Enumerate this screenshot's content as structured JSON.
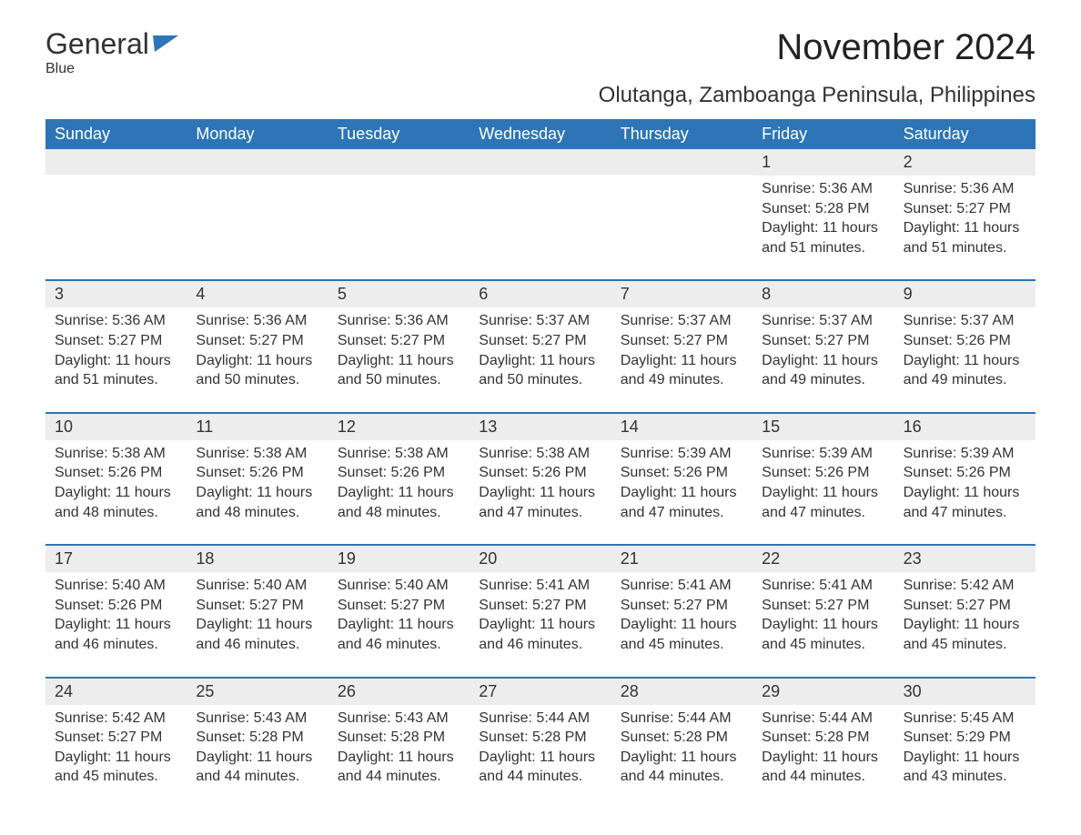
{
  "branding": {
    "word1": "General",
    "word2": "Blue",
    "flag_color": "#2d75b6"
  },
  "header": {
    "month_title": "November 2024",
    "location": "Olutanga, Zamboanga Peninsula, Philippines"
  },
  "style": {
    "header_bg": "#2d75b6",
    "header_text_color": "#ffffff",
    "daynum_bg": "#ededed",
    "week_border_color": "#2d75b6",
    "body_text_color": "#333333",
    "brand_blue": "#2d75b6",
    "month_title_fontsize": 40,
    "location_fontsize": 24,
    "weekday_fontsize": 18,
    "daynum_fontsize": 18,
    "body_fontsize": 16
  },
  "calendar": {
    "weekdays": [
      "Sunday",
      "Monday",
      "Tuesday",
      "Wednesday",
      "Thursday",
      "Friday",
      "Saturday"
    ],
    "weeks": [
      [
        {
          "empty": true
        },
        {
          "empty": true
        },
        {
          "empty": true
        },
        {
          "empty": true
        },
        {
          "empty": true
        },
        {
          "day": "1",
          "sunrise": "Sunrise: 5:36 AM",
          "sunset": "Sunset: 5:28 PM",
          "daylight1": "Daylight: 11 hours",
          "daylight2": "and 51 minutes."
        },
        {
          "day": "2",
          "sunrise": "Sunrise: 5:36 AM",
          "sunset": "Sunset: 5:27 PM",
          "daylight1": "Daylight: 11 hours",
          "daylight2": "and 51 minutes."
        }
      ],
      [
        {
          "day": "3",
          "sunrise": "Sunrise: 5:36 AM",
          "sunset": "Sunset: 5:27 PM",
          "daylight1": "Daylight: 11 hours",
          "daylight2": "and 51 minutes."
        },
        {
          "day": "4",
          "sunrise": "Sunrise: 5:36 AM",
          "sunset": "Sunset: 5:27 PM",
          "daylight1": "Daylight: 11 hours",
          "daylight2": "and 50 minutes."
        },
        {
          "day": "5",
          "sunrise": "Sunrise: 5:36 AM",
          "sunset": "Sunset: 5:27 PM",
          "daylight1": "Daylight: 11 hours",
          "daylight2": "and 50 minutes."
        },
        {
          "day": "6",
          "sunrise": "Sunrise: 5:37 AM",
          "sunset": "Sunset: 5:27 PM",
          "daylight1": "Daylight: 11 hours",
          "daylight2": "and 50 minutes."
        },
        {
          "day": "7",
          "sunrise": "Sunrise: 5:37 AM",
          "sunset": "Sunset: 5:27 PM",
          "daylight1": "Daylight: 11 hours",
          "daylight2": "and 49 minutes."
        },
        {
          "day": "8",
          "sunrise": "Sunrise: 5:37 AM",
          "sunset": "Sunset: 5:27 PM",
          "daylight1": "Daylight: 11 hours",
          "daylight2": "and 49 minutes."
        },
        {
          "day": "9",
          "sunrise": "Sunrise: 5:37 AM",
          "sunset": "Sunset: 5:26 PM",
          "daylight1": "Daylight: 11 hours",
          "daylight2": "and 49 minutes."
        }
      ],
      [
        {
          "day": "10",
          "sunrise": "Sunrise: 5:38 AM",
          "sunset": "Sunset: 5:26 PM",
          "daylight1": "Daylight: 11 hours",
          "daylight2": "and 48 minutes."
        },
        {
          "day": "11",
          "sunrise": "Sunrise: 5:38 AM",
          "sunset": "Sunset: 5:26 PM",
          "daylight1": "Daylight: 11 hours",
          "daylight2": "and 48 minutes."
        },
        {
          "day": "12",
          "sunrise": "Sunrise: 5:38 AM",
          "sunset": "Sunset: 5:26 PM",
          "daylight1": "Daylight: 11 hours",
          "daylight2": "and 48 minutes."
        },
        {
          "day": "13",
          "sunrise": "Sunrise: 5:38 AM",
          "sunset": "Sunset: 5:26 PM",
          "daylight1": "Daylight: 11 hours",
          "daylight2": "and 47 minutes."
        },
        {
          "day": "14",
          "sunrise": "Sunrise: 5:39 AM",
          "sunset": "Sunset: 5:26 PM",
          "daylight1": "Daylight: 11 hours",
          "daylight2": "and 47 minutes."
        },
        {
          "day": "15",
          "sunrise": "Sunrise: 5:39 AM",
          "sunset": "Sunset: 5:26 PM",
          "daylight1": "Daylight: 11 hours",
          "daylight2": "and 47 minutes."
        },
        {
          "day": "16",
          "sunrise": "Sunrise: 5:39 AM",
          "sunset": "Sunset: 5:26 PM",
          "daylight1": "Daylight: 11 hours",
          "daylight2": "and 47 minutes."
        }
      ],
      [
        {
          "day": "17",
          "sunrise": "Sunrise: 5:40 AM",
          "sunset": "Sunset: 5:26 PM",
          "daylight1": "Daylight: 11 hours",
          "daylight2": "and 46 minutes."
        },
        {
          "day": "18",
          "sunrise": "Sunrise: 5:40 AM",
          "sunset": "Sunset: 5:27 PM",
          "daylight1": "Daylight: 11 hours",
          "daylight2": "and 46 minutes."
        },
        {
          "day": "19",
          "sunrise": "Sunrise: 5:40 AM",
          "sunset": "Sunset: 5:27 PM",
          "daylight1": "Daylight: 11 hours",
          "daylight2": "and 46 minutes."
        },
        {
          "day": "20",
          "sunrise": "Sunrise: 5:41 AM",
          "sunset": "Sunset: 5:27 PM",
          "daylight1": "Daylight: 11 hours",
          "daylight2": "and 46 minutes."
        },
        {
          "day": "21",
          "sunrise": "Sunrise: 5:41 AM",
          "sunset": "Sunset: 5:27 PM",
          "daylight1": "Daylight: 11 hours",
          "daylight2": "and 45 minutes."
        },
        {
          "day": "22",
          "sunrise": "Sunrise: 5:41 AM",
          "sunset": "Sunset: 5:27 PM",
          "daylight1": "Daylight: 11 hours",
          "daylight2": "and 45 minutes."
        },
        {
          "day": "23",
          "sunrise": "Sunrise: 5:42 AM",
          "sunset": "Sunset: 5:27 PM",
          "daylight1": "Daylight: 11 hours",
          "daylight2": "and 45 minutes."
        }
      ],
      [
        {
          "day": "24",
          "sunrise": "Sunrise: 5:42 AM",
          "sunset": "Sunset: 5:27 PM",
          "daylight1": "Daylight: 11 hours",
          "daylight2": "and 45 minutes."
        },
        {
          "day": "25",
          "sunrise": "Sunrise: 5:43 AM",
          "sunset": "Sunset: 5:28 PM",
          "daylight1": "Daylight: 11 hours",
          "daylight2": "and 44 minutes."
        },
        {
          "day": "26",
          "sunrise": "Sunrise: 5:43 AM",
          "sunset": "Sunset: 5:28 PM",
          "daylight1": "Daylight: 11 hours",
          "daylight2": "and 44 minutes."
        },
        {
          "day": "27",
          "sunrise": "Sunrise: 5:44 AM",
          "sunset": "Sunset: 5:28 PM",
          "daylight1": "Daylight: 11 hours",
          "daylight2": "and 44 minutes."
        },
        {
          "day": "28",
          "sunrise": "Sunrise: 5:44 AM",
          "sunset": "Sunset: 5:28 PM",
          "daylight1": "Daylight: 11 hours",
          "daylight2": "and 44 minutes."
        },
        {
          "day": "29",
          "sunrise": "Sunrise: 5:44 AM",
          "sunset": "Sunset: 5:28 PM",
          "daylight1": "Daylight: 11 hours",
          "daylight2": "and 44 minutes."
        },
        {
          "day": "30",
          "sunrise": "Sunrise: 5:45 AM",
          "sunset": "Sunset: 5:29 PM",
          "daylight1": "Daylight: 11 hours",
          "daylight2": "and 43 minutes."
        }
      ]
    ]
  }
}
